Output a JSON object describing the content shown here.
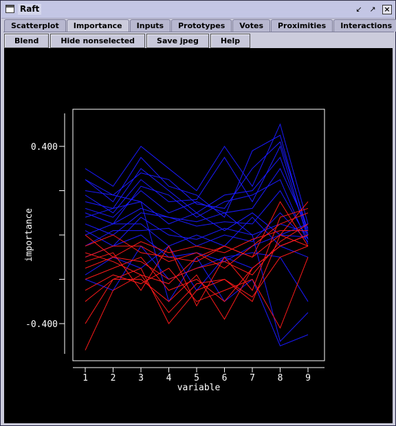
{
  "window": {
    "title": "Raft"
  },
  "tabs": [
    {
      "label": "Scatterplot",
      "active": false
    },
    {
      "label": "Importance",
      "active": true
    },
    {
      "label": "Inputs",
      "active": false
    },
    {
      "label": "Prototypes",
      "active": false
    },
    {
      "label": "Votes",
      "active": false
    },
    {
      "label": "Proximities",
      "active": false
    },
    {
      "label": "Interactions",
      "active": false
    }
  ],
  "toolbar": {
    "blend": "Blend",
    "hide_nonselected": "Hide nonselected",
    "save_jpeg": "Save jpeg",
    "help": "Help"
  },
  "colors": {
    "plot_bg": "#000000",
    "series_blue": "#1a1aff",
    "series_red": "#ff1a1a",
    "axis": "#ffffff"
  },
  "chart_data": {
    "type": "line",
    "style": "parallel-coordinates",
    "xlabel": "variable",
    "ylabel": "importance",
    "categories": [
      "1",
      "2",
      "3",
      "4",
      "5",
      "6",
      "7",
      "8",
      "9"
    ],
    "y_tick_labels": [
      "0.400",
      "-0.400"
    ],
    "y_ticks": [
      0.4,
      0.2,
      0.0,
      -0.2,
      -0.4
    ],
    "ylim": [
      -0.57,
      0.57
    ],
    "grid": false,
    "series": [
      {
        "color": "blue",
        "values": [
          0.3,
          0.22,
          0.4,
          0.3,
          0.2,
          0.4,
          0.22,
          0.5,
          0.05
        ]
      },
      {
        "color": "blue",
        "values": [
          0.25,
          0.15,
          0.35,
          0.22,
          0.18,
          0.08,
          0.38,
          0.45,
          0.0
        ]
      },
      {
        "color": "blue",
        "values": [
          0.2,
          0.18,
          0.28,
          0.25,
          0.14,
          0.12,
          0.3,
          0.42,
          0.02
        ]
      },
      {
        "color": "blue",
        "values": [
          0.18,
          0.1,
          0.25,
          0.15,
          0.16,
          0.35,
          0.15,
          0.4,
          -0.02
        ]
      },
      {
        "color": "blue",
        "values": [
          0.15,
          0.12,
          0.3,
          0.2,
          0.1,
          0.18,
          0.2,
          0.35,
          0.0
        ]
      },
      {
        "color": "blue",
        "values": [
          0.12,
          0.08,
          0.2,
          0.1,
          0.15,
          0.1,
          0.12,
          0.3,
          0.03
        ]
      },
      {
        "color": "blue",
        "values": [
          0.1,
          0.05,
          0.22,
          0.18,
          0.08,
          0.15,
          0.18,
          0.25,
          -0.04
        ]
      },
      {
        "color": "blue",
        "values": [
          0.08,
          0.12,
          0.15,
          0.05,
          0.1,
          0.02,
          0.1,
          0.0,
          0.05
        ]
      },
      {
        "color": "blue",
        "values": [
          0.05,
          0.0,
          0.1,
          0.08,
          0.04,
          0.06,
          0.05,
          0.2,
          -0.02
        ]
      },
      {
        "color": "blue",
        "values": [
          0.02,
          -0.05,
          0.08,
          0.0,
          -0.02,
          0.03,
          0.0,
          0.05,
          0.01
        ]
      },
      {
        "color": "blue",
        "values": [
          0.0,
          0.05,
          0.05,
          -0.05,
          0.0,
          -0.05,
          0.08,
          -0.05,
          0.0
        ]
      },
      {
        "color": "blue",
        "values": [
          -0.05,
          0.02,
          0.02,
          0.03,
          -0.05,
          0.0,
          -0.03,
          0.1,
          -0.03
        ]
      },
      {
        "color": "blue",
        "values": [
          -0.1,
          -0.05,
          0.0,
          -0.1,
          -0.08,
          -0.12,
          -0.05,
          0.0,
          -0.01
        ]
      },
      {
        "color": "blue",
        "values": [
          -0.2,
          -0.25,
          -0.05,
          -0.2,
          -0.15,
          -0.1,
          -0.15,
          -0.05,
          -0.1
        ]
      },
      {
        "color": "blue",
        "values": [
          0.25,
          0.18,
          0.15,
          -0.3,
          -0.1,
          -0.3,
          -0.2,
          -0.5,
          -0.45
        ]
      },
      {
        "color": "blue",
        "values": [
          0.1,
          0.05,
          0.12,
          0.08,
          0.06,
          0.1,
          0.0,
          -0.48,
          -0.35
        ]
      },
      {
        "color": "blue",
        "values": [
          -0.18,
          -0.1,
          -0.15,
          -0.05,
          -0.25,
          -0.1,
          -0.08,
          -0.1,
          -0.3
        ]
      },
      {
        "color": "red",
        "values": [
          -0.05,
          0.0,
          -0.08,
          -0.1,
          -0.12,
          -0.05,
          -0.1,
          0.0,
          0.15
        ]
      },
      {
        "color": "red",
        "values": [
          -0.1,
          -0.05,
          -0.05,
          -0.12,
          -0.08,
          -0.15,
          -0.05,
          0.05,
          0.1
        ]
      },
      {
        "color": "red",
        "values": [
          -0.15,
          -0.1,
          -0.12,
          -0.2,
          -0.15,
          -0.12,
          -0.18,
          -0.03,
          0.05
        ]
      },
      {
        "color": "red",
        "values": [
          -0.2,
          -0.15,
          -0.1,
          -0.25,
          -0.2,
          -0.3,
          -0.15,
          -0.05,
          0.0
        ]
      },
      {
        "color": "red",
        "values": [
          -0.3,
          -0.2,
          -0.15,
          -0.4,
          -0.25,
          -0.2,
          -0.3,
          0.0,
          -0.05
        ]
      },
      {
        "color": "red",
        "values": [
          -0.25,
          -0.18,
          -0.22,
          -0.15,
          -0.3,
          -0.25,
          -0.2,
          -0.42,
          -0.1
        ]
      },
      {
        "color": "red",
        "values": [
          -0.4,
          -0.2,
          -0.2,
          -0.3,
          -0.18,
          -0.38,
          -0.15,
          -0.05,
          0.0
        ]
      },
      {
        "color": "red",
        "values": [
          -0.52,
          -0.25,
          -0.18,
          -0.35,
          -0.22,
          -0.2,
          -0.28,
          -0.1,
          -0.05
        ]
      },
      {
        "color": "red",
        "values": [
          -0.12,
          -0.08,
          -0.25,
          -0.05,
          -0.32,
          -0.1,
          -0.25,
          0.08,
          0.12
        ]
      },
      {
        "color": "red",
        "values": [
          0.0,
          -0.1,
          -0.03,
          -0.08,
          -0.05,
          -0.08,
          -0.02,
          0.02,
          0.02
        ]
      },
      {
        "color": "red",
        "values": [
          -0.08,
          -0.12,
          -0.18,
          -0.22,
          -0.1,
          -0.05,
          -0.1,
          0.15,
          -0.05
        ]
      }
    ]
  }
}
